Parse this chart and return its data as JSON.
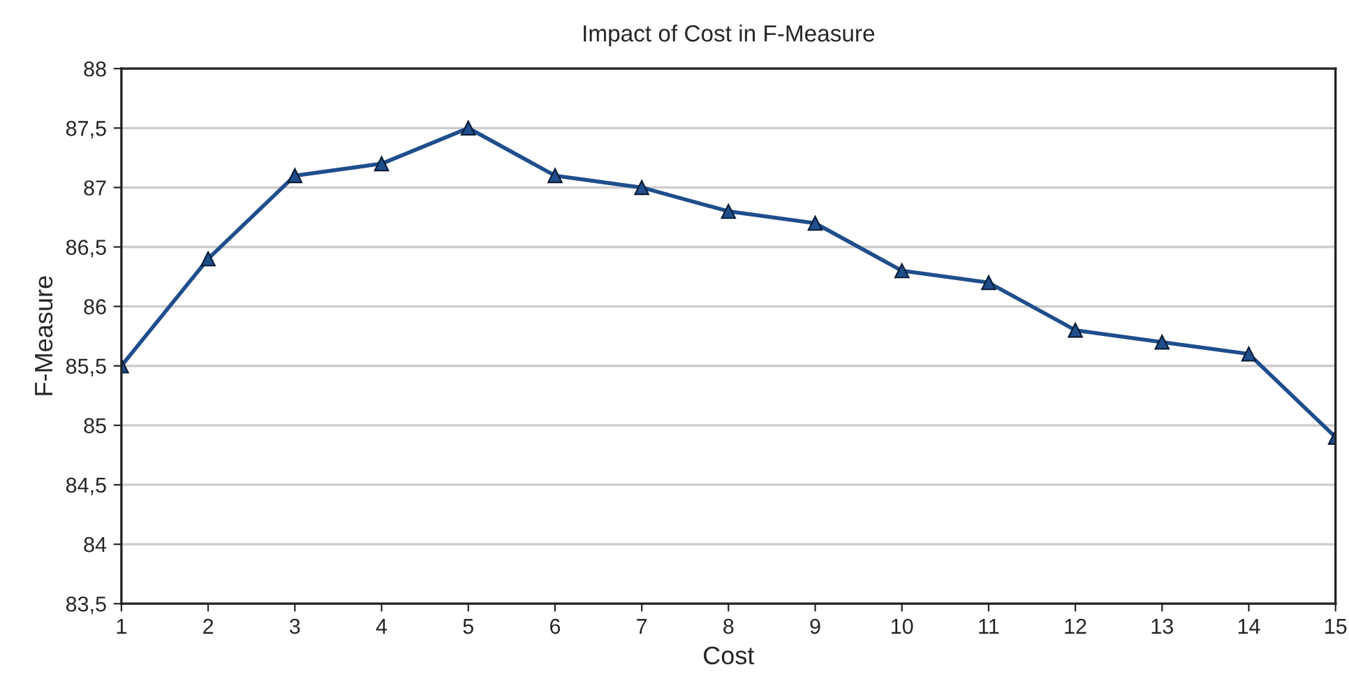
{
  "chart_data": {
    "type": "line",
    "title": "Impact of Cost in F-Measure",
    "xlabel": "Cost",
    "ylabel": "F-Measure",
    "x": [
      1,
      2,
      3,
      4,
      5,
      6,
      7,
      8,
      9,
      10,
      11,
      12,
      13,
      14,
      15
    ],
    "series": [
      {
        "color": "#1f4e8c",
        "values": [
          85.5,
          86.4,
          87.1,
          87.2,
          87.5,
          87.1,
          87.0,
          86.8,
          86.7,
          86.3,
          86.2,
          85.8,
          85.7,
          85.6,
          84.9
        ]
      }
    ],
    "xlim": [
      1,
      15
    ],
    "xticks": [
      1,
      2,
      3,
      4,
      5,
      6,
      7,
      8,
      9,
      10,
      11,
      12,
      13,
      14,
      15
    ],
    "ylim": [
      83.5,
      88
    ],
    "yticks": [
      {
        "value": 83.5,
        "label": "83,5"
      },
      84,
      {
        "value": 84.5,
        "label": "84,5"
      },
      85,
      {
        "value": 85.5,
        "label": "85,5"
      },
      86,
      {
        "value": 86.5,
        "label": "86,5"
      },
      87,
      {
        "value": 87.5,
        "label": "87,5"
      },
      88
    ],
    "grid": "y",
    "marker": "triangle",
    "line_style": "solid"
  }
}
